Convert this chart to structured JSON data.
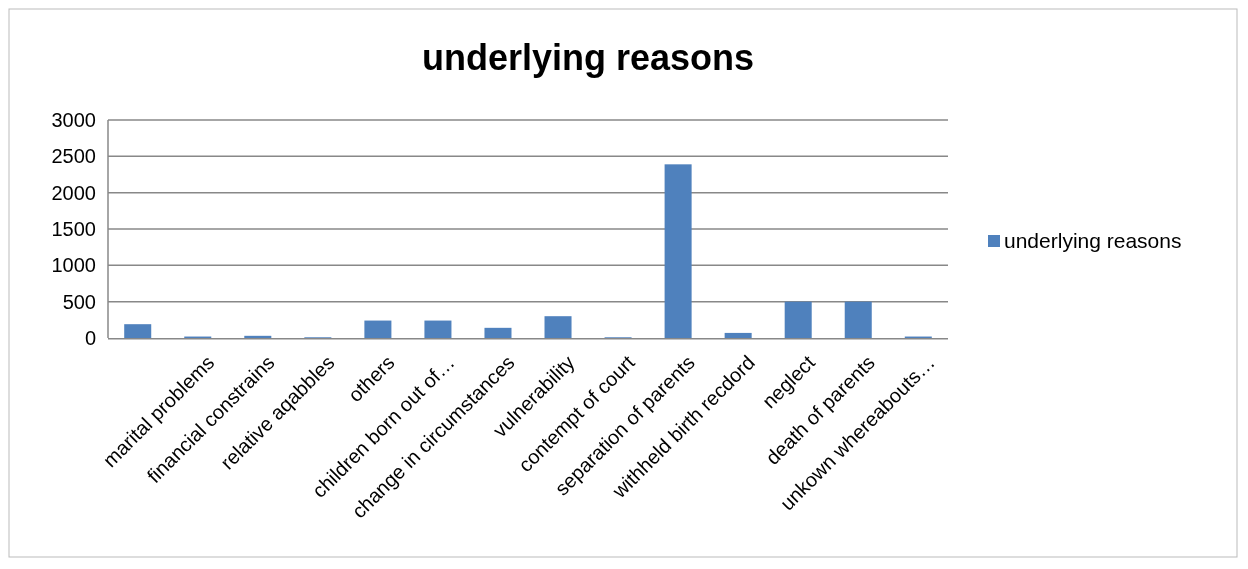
{
  "chart_data": {
    "type": "bar",
    "title": "underlying reasons",
    "categories": [
      null,
      "marital problems",
      "financial constrains",
      "relative aqabbles",
      "others",
      "children born out of…",
      "change in circumstances",
      "vulnerability",
      "contempt of court",
      "separation of parents",
      "withheld birth recdord",
      "neglect",
      "death of parents",
      "unkown whereabouts…"
    ],
    "series": [
      {
        "name": "underlying reasons",
        "color": "#4f81bd",
        "values": [
          190,
          20,
          30,
          10,
          240,
          240,
          140,
          300,
          10,
          2390,
          70,
          500,
          500,
          20
        ]
      }
    ],
    "ylim": [
      0,
      3000
    ],
    "yticks": [
      0,
      500,
      1000,
      1500,
      2000,
      2500,
      3000
    ],
    "grid": "y",
    "legend": "right"
  }
}
